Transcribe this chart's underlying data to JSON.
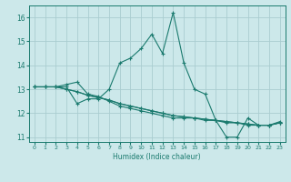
{
  "title": "",
  "xlabel": "Humidex (Indice chaleur)",
  "ylabel": "",
  "background_color": "#cce8ea",
  "line_color": "#1a7a6e",
  "grid_color": "#aacdd0",
  "xlim": [
    -0.5,
    23.5
  ],
  "ylim": [
    10.8,
    16.5
  ],
  "yticks": [
    11,
    12,
    13,
    14,
    15,
    16
  ],
  "xticks": [
    0,
    1,
    2,
    3,
    4,
    5,
    6,
    7,
    8,
    9,
    10,
    11,
    12,
    13,
    14,
    15,
    16,
    17,
    18,
    19,
    20,
    21,
    22,
    23
  ],
  "lines": [
    [
      13.1,
      13.1,
      13.1,
      13.1,
      12.4,
      12.6,
      12.6,
      13.0,
      14.1,
      14.3,
      14.7,
      15.3,
      14.5,
      16.2,
      14.1,
      13.0,
      12.8,
      11.7,
      11.0,
      11.0,
      11.8,
      11.5,
      11.5,
      11.6
    ],
    [
      13.1,
      13.1,
      13.1,
      13.0,
      12.9,
      12.75,
      12.65,
      12.55,
      12.4,
      12.3,
      12.2,
      12.1,
      12.0,
      11.9,
      11.85,
      11.8,
      11.75,
      11.7,
      11.65,
      11.6,
      11.55,
      11.5,
      11.5,
      11.6
    ],
    [
      13.1,
      13.1,
      13.1,
      13.0,
      12.9,
      12.75,
      12.65,
      12.55,
      12.4,
      12.3,
      12.2,
      12.1,
      12.0,
      11.9,
      11.85,
      11.8,
      11.75,
      11.7,
      11.65,
      11.6,
      11.55,
      11.5,
      11.5,
      11.65
    ],
    [
      13.1,
      13.1,
      13.1,
      13.2,
      13.3,
      12.8,
      12.7,
      12.5,
      12.3,
      12.2,
      12.1,
      12.0,
      11.9,
      11.8,
      11.8,
      11.8,
      11.7,
      11.7,
      11.6,
      11.6,
      11.5,
      11.5,
      11.5,
      11.6
    ]
  ],
  "figsize": [
    3.2,
    2.0
  ],
  "dpi": 100
}
